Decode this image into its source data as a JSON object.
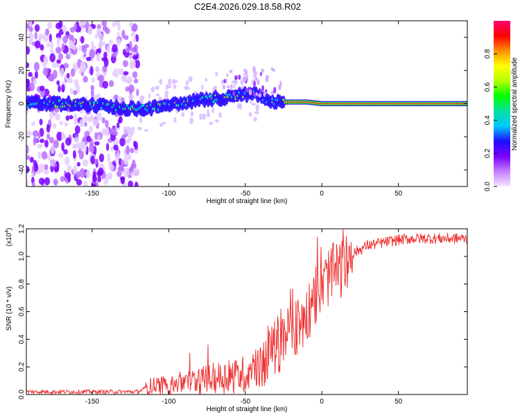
{
  "title": "C2E4.2026.029.18.58.R02",
  "chart_data": [
    {
      "type": "heatmap",
      "xlabel": "Height of straight line (km)",
      "ylabel": "Frequency (Hz)",
      "xlim": [
        -193,
        95
      ],
      "ylim": [
        -50,
        50
      ],
      "xticks": [
        -150,
        -100,
        -50,
        0,
        50
      ],
      "yticks": [
        -40,
        -20,
        0,
        20,
        40
      ],
      "xtick_labels": [
        "-150",
        "-100",
        "-50",
        "0",
        "50"
      ],
      "ytick_labels": [
        "-40",
        "-20",
        "0",
        "20",
        "40"
      ],
      "colorbar": {
        "label": "Normalized spectral amplitude",
        "range": [
          0,
          1
        ],
        "ticks": [
          0,
          0.2,
          0.4,
          0.6,
          0.8
        ],
        "tick_labels": [
          "0.0",
          "0.2",
          "0.4",
          "0.6",
          "0.8"
        ],
        "colors": [
          "#f2e8ff",
          "#c77dff",
          "#7a00ff",
          "#1c10ff",
          "#00c8ff",
          "#00e0a0",
          "#00ff00",
          "#b4ff00",
          "#ffff00",
          "#ff9000",
          "#ff0000",
          "#ff0070"
        ]
      },
      "ridge": {
        "description_points_x": [
          -193,
          -175,
          -160,
          -125,
          -115,
          -100,
          -80,
          -60,
          -45,
          -40,
          -30,
          -20,
          -10,
          0,
          10,
          20,
          95
        ],
        "frequency_hz": [
          0,
          0,
          0,
          -3,
          -3,
          -1,
          2,
          4,
          6,
          4,
          1,
          1,
          1,
          0,
          0,
          0,
          0
        ]
      },
      "noise_region_x": [
        -193,
        -120
      ]
    },
    {
      "type": "line",
      "xlabel": "Height of straight line (km)",
      "ylabel": "SNR (10 * v/v)",
      "scale_label": "(x10",
      "scale_exp": "4",
      "scale_close": ")",
      "xlim": [
        -193,
        95
      ],
      "ylim": [
        0,
        1.2
      ],
      "xticks": [
        -150,
        -100,
        -50,
        0,
        50
      ],
      "yticks": [
        0,
        0.2,
        0.4,
        0.6,
        0.8,
        1.0,
        1.2
      ],
      "xtick_labels": [
        "-150",
        "-100",
        "-50",
        "0",
        "50"
      ],
      "ytick_labels": [
        "0.0",
        "0.2",
        "0.4",
        "0.6",
        "0.8",
        "1.0",
        "1.2"
      ],
      "color": "#ee3333",
      "trend_x": [
        -193,
        -120,
        -112,
        -100,
        -90,
        -80,
        -70,
        -60,
        -50,
        -40,
        -35,
        -30,
        -25,
        -20,
        -15,
        -10,
        -5,
        0,
        5,
        10,
        15,
        20,
        30,
        40,
        50,
        60,
        70,
        80,
        95
      ],
      "trend_y": [
        0.02,
        0.02,
        0.06,
        0.07,
        0.09,
        0.1,
        0.12,
        0.13,
        0.15,
        0.2,
        0.3,
        0.35,
        0.4,
        0.45,
        0.5,
        0.58,
        0.7,
        0.8,
        0.86,
        0.9,
        0.92,
        1.02,
        1.08,
        1.1,
        1.12,
        1.13,
        1.13,
        1.13,
        1.13
      ]
    }
  ]
}
